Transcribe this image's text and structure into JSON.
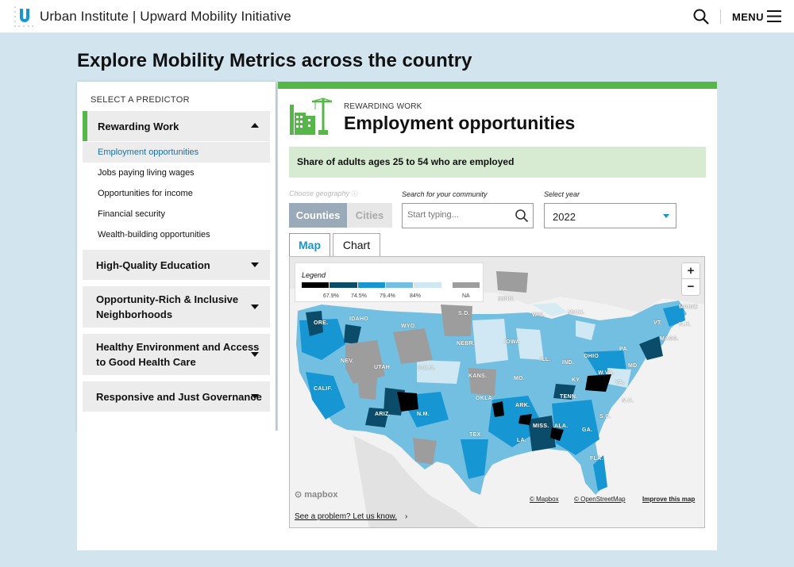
{
  "header": {
    "brand": "Urban Institute | Upward Mobility Initiative",
    "menu_label": "MENU"
  },
  "page_title": "Explore Mobility Metrics across the country",
  "sidebar": {
    "heading": "SELECT A PREDICTOR",
    "active_category": "Rewarding Work",
    "sub_items": [
      {
        "label": "Employment opportunities",
        "selected": true
      },
      {
        "label": "Jobs paying living wages",
        "selected": false
      },
      {
        "label": "Opportunities for income",
        "selected": false
      },
      {
        "label": "Financial security",
        "selected": false
      },
      {
        "label": "Wealth-building opportunities",
        "selected": false
      }
    ],
    "categories": [
      {
        "line1": "High-Quality Education",
        "line2": ""
      },
      {
        "line1": "Opportunity-Rich & Inclusive",
        "line2": "Neighborhoods"
      },
      {
        "line1": "Healthy Environment and Access",
        "line2": "to Good Health Care"
      },
      {
        "line1": "Responsive and Just Governance",
        "line2": ""
      }
    ]
  },
  "panel": {
    "eyebrow": "REWARDING WORK",
    "title": "Employment opportunities",
    "description": "Share of adults ages 25 to 54 who are employed",
    "geography_label": "Choose geography",
    "geography_options": [
      "Counties",
      "Cities"
    ],
    "geography_selected": "Counties",
    "search_label": "Search for your community",
    "search_placeholder": "Start typing...",
    "year_label": "Select year",
    "year_value": "2022",
    "tabs": [
      "Map",
      "Chart"
    ],
    "active_tab": "Map"
  },
  "map": {
    "legend_title": "Legend",
    "legend_colors": [
      "#000000",
      "#0a4c6a",
      "#1696d2",
      "#73bfe2",
      "#cfe8f3",
      "#9d9d9d"
    ],
    "legend_labels": [
      "67.9%",
      "74.5%",
      "79.4%",
      "84%",
      "NA"
    ],
    "state_labels": [
      "MINN.",
      "ORE.",
      "IDAHO",
      "WYO.",
      "S.D.",
      "WIS.",
      "MICH.",
      "MAINE",
      "VT.",
      "N.H.",
      "MASS.",
      "IOWA",
      "NEBR.",
      "NEV.",
      "UTAH",
      "COLO.",
      "ILL.",
      "IND.",
      "OHIO",
      "PA.",
      "MD.",
      "W.VA.",
      "VA.",
      "CALIF.",
      "KANS.",
      "MO.",
      "KY.",
      "TENN.",
      "N.C.",
      "S.C.",
      "OKLA.",
      "ARK.",
      "ARIZ.",
      "N.M.",
      "MISS.",
      "ALA.",
      "GA.",
      "TEX.",
      "LA.",
      "FLA."
    ],
    "attribution": [
      "© Mapbox",
      "© OpenStreetMap",
      "Improve this map"
    ],
    "mapbox_logo": "mapbox",
    "problem_link": "See a problem? Let us know."
  },
  "colors": {
    "accent_green": "#55b748",
    "accent_blue": "#1696d2",
    "desc_bg": "#d6ebd2"
  }
}
